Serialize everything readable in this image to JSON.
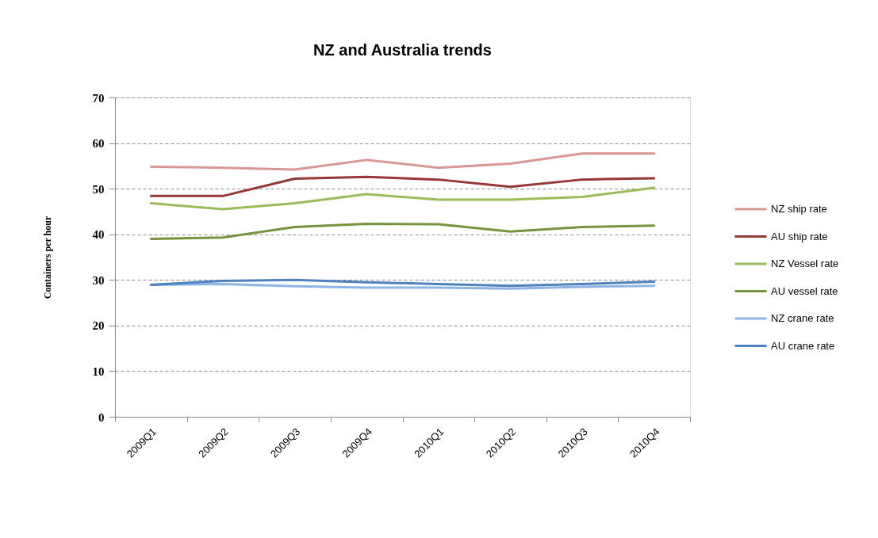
{
  "chart_data": {
    "type": "line",
    "title": "NZ and Australia trends",
    "ylabel": "Containers per hour",
    "categories": [
      "2009Q1",
      "2009Q2",
      "2009Q3",
      "2009Q4",
      "2010Q1",
      "2010Q2",
      "2010Q3",
      "2010Q4"
    ],
    "ylim": [
      0,
      70
    ],
    "yticks": [
      0,
      10,
      20,
      30,
      40,
      50,
      60,
      70
    ],
    "grid": "y",
    "legend": "right",
    "line_style": "solid",
    "series": [
      {
        "name": "NZ ship rate",
        "color": "#d99694",
        "values": [
          54.8,
          54.6,
          54.2,
          56.3,
          54.6,
          55.5,
          57.7,
          57.7
        ]
      },
      {
        "name": "AU ship rate",
        "color": "#953735",
        "values": [
          48.4,
          48.4,
          52.2,
          52.6,
          52.0,
          50.4,
          52.0,
          52.3
        ]
      },
      {
        "name": "NZ Vessel rate",
        "color": "#9bbb59",
        "values": [
          46.8,
          45.5,
          46.8,
          48.8,
          47.6,
          47.6,
          48.2,
          50.2
        ]
      },
      {
        "name": "AU vessel rate",
        "color": "#77933c",
        "values": [
          39.0,
          39.3,
          41.6,
          42.3,
          42.2,
          40.6,
          41.6,
          41.9
        ]
      },
      {
        "name": "NZ crane rate",
        "color": "#8eb4e3",
        "values": [
          28.9,
          29.1,
          28.6,
          28.3,
          28.3,
          28.1,
          28.5,
          28.7
        ]
      },
      {
        "name": "AU crane rate",
        "color": "#4f81bd",
        "values": [
          28.9,
          29.8,
          30.0,
          29.5,
          29.1,
          28.7,
          29.1,
          29.6
        ]
      }
    ]
  }
}
